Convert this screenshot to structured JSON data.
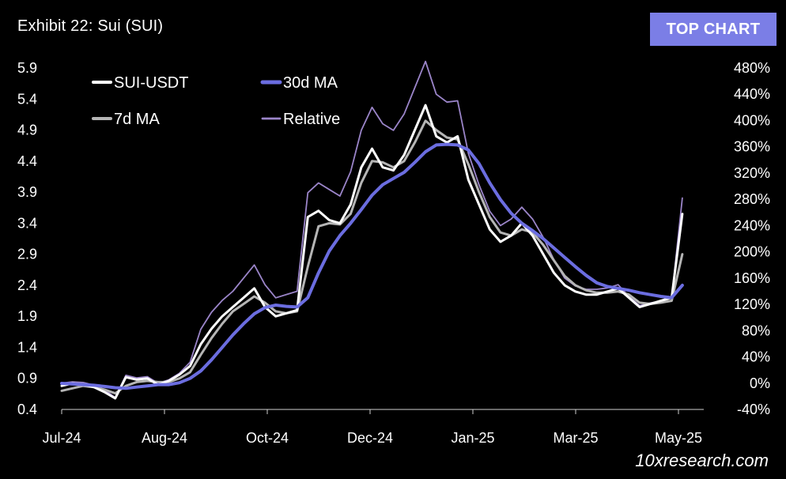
{
  "header": {
    "title": "Exhibit 22: Sui (SUI)",
    "badge": "TOP CHART",
    "watermark": "10xresearch.com"
  },
  "colors": {
    "background": "#000000",
    "price": "#ffffff",
    "ma7": "#b5b5b5",
    "ma30": "#6b6de0",
    "relative": "#9b85c9",
    "badge": "#7b7ee6"
  },
  "chart_data": {
    "type": "line",
    "title": "Exhibit 22: Sui (SUI)",
    "xlabel": "",
    "ylabel": "",
    "x_tick_labels": [
      "Jul-24",
      "Aug-24",
      "Oct-24",
      "Dec-24",
      "Jan-25",
      "Mar-25",
      "May-25"
    ],
    "y_left_ticks": [
      "0.4",
      "0.9",
      "1.4",
      "1.9",
      "2.4",
      "2.9",
      "3.4",
      "3.9",
      "4.4",
      "4.9",
      "5.4",
      "5.9"
    ],
    "y_right_ticks": [
      "-40%",
      "0%",
      "40%",
      "80%",
      "120%",
      "160%",
      "200%",
      "240%",
      "280%",
      "320%",
      "360%",
      "400%",
      "440%",
      "480%"
    ],
    "ylim_left": [
      0.4,
      5.9
    ],
    "ylim_right": [
      -40,
      480
    ],
    "x_range_days": [
      0,
      300
    ],
    "legend": {
      "position": "top-left",
      "entries": [
        "SUI-USDT",
        "30d MA",
        "7d MA",
        "Relative"
      ]
    },
    "grid": false,
    "x": [
      0,
      5,
      10,
      15,
      20,
      25,
      30,
      35,
      40,
      45,
      50,
      55,
      60,
      65,
      70,
      75,
      80,
      85,
      90,
      95,
      100,
      105,
      110,
      115,
      120,
      125,
      130,
      135,
      140,
      145,
      150,
      155,
      160,
      165,
      170,
      175,
      180,
      185,
      190,
      195,
      200,
      205,
      210,
      215,
      220,
      225,
      230,
      235,
      240,
      245,
      250,
      255,
      260,
      265,
      270,
      275,
      280,
      285,
      290
    ],
    "series": [
      {
        "name": "SUI-USDT",
        "axis": "left",
        "values": [
          0.78,
          0.82,
          0.8,
          0.76,
          0.68,
          0.58,
          0.92,
          0.88,
          0.9,
          0.8,
          0.86,
          0.96,
          1.1,
          1.45,
          1.7,
          1.9,
          2.05,
          2.2,
          2.35,
          2.05,
          1.9,
          1.95,
          2.0,
          3.5,
          3.6,
          3.45,
          3.4,
          3.7,
          4.3,
          4.6,
          4.3,
          4.25,
          4.5,
          4.9,
          5.3,
          4.8,
          4.7,
          4.8,
          4.1,
          3.7,
          3.3,
          3.1,
          3.2,
          3.4,
          3.2,
          2.9,
          2.6,
          2.4,
          2.3,
          2.25,
          2.25,
          2.3,
          2.35,
          2.2,
          2.05,
          2.1,
          2.15,
          2.2,
          3.55
        ]
      },
      {
        "name": "7d MA",
        "axis": "left",
        "values": [
          0.7,
          0.74,
          0.78,
          0.76,
          0.72,
          0.66,
          0.78,
          0.84,
          0.86,
          0.84,
          0.84,
          0.9,
          1.0,
          1.28,
          1.55,
          1.78,
          1.98,
          2.1,
          2.22,
          2.12,
          1.98,
          1.95,
          1.98,
          2.7,
          3.35,
          3.4,
          3.38,
          3.55,
          4.05,
          4.4,
          4.38,
          4.3,
          4.4,
          4.7,
          5.05,
          4.9,
          4.78,
          4.75,
          4.35,
          3.9,
          3.5,
          3.25,
          3.2,
          3.3,
          3.25,
          3.05,
          2.8,
          2.55,
          2.4,
          2.32,
          2.28,
          2.28,
          2.3,
          2.25,
          2.12,
          2.1,
          2.12,
          2.15,
          2.9
        ]
      },
      {
        "name": "30d MA",
        "axis": "left",
        "values": [
          0.82,
          0.81,
          0.8,
          0.79,
          0.77,
          0.75,
          0.74,
          0.76,
          0.78,
          0.8,
          0.8,
          0.83,
          0.9,
          1.02,
          1.2,
          1.4,
          1.6,
          1.78,
          1.94,
          2.04,
          2.08,
          2.06,
          2.05,
          2.2,
          2.6,
          2.95,
          3.2,
          3.4,
          3.62,
          3.85,
          4.02,
          4.12,
          4.22,
          4.38,
          4.55,
          4.66,
          4.67,
          4.66,
          4.58,
          4.36,
          4.05,
          3.78,
          3.56,
          3.4,
          3.28,
          3.15,
          3.0,
          2.85,
          2.7,
          2.56,
          2.44,
          2.38,
          2.35,
          2.32,
          2.28,
          2.25,
          2.22,
          2.2,
          2.4
        ]
      },
      {
        "name": "Relative",
        "axis": "right",
        "values": [
          0,
          2,
          1,
          -3,
          -10,
          -22,
          12,
          8,
          10,
          0,
          5,
          15,
          32,
          82,
          108,
          126,
          140,
          160,
          180,
          150,
          130,
          135,
          140,
          290,
          305,
          295,
          285,
          322,
          385,
          420,
          395,
          385,
          410,
          450,
          490,
          440,
          428,
          430,
          350,
          302,
          262,
          240,
          250,
          268,
          250,
          222,
          188,
          160,
          148,
          143,
          143,
          145,
          150,
          132,
          118,
          122,
          125,
          130,
          282
        ]
      }
    ]
  }
}
